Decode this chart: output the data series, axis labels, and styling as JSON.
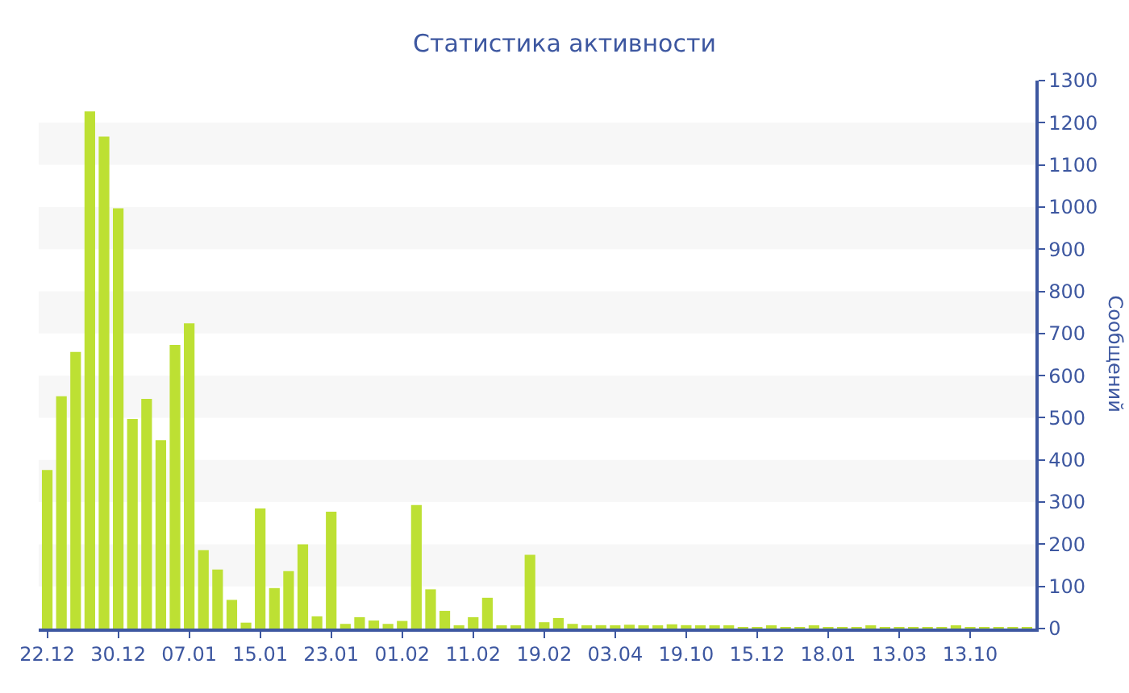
{
  "chart_data": {
    "type": "bar",
    "title": "Статистика активности",
    "ylabel": "Сообщений",
    "categories": [
      "22.12",
      null,
      null,
      null,
      null,
      "30.12",
      null,
      null,
      null,
      null,
      "07.01",
      null,
      null,
      null,
      null,
      "15.01",
      null,
      null,
      null,
      null,
      "23.01",
      null,
      null,
      null,
      null,
      "01.02",
      null,
      null,
      null,
      null,
      "11.02",
      null,
      null,
      null,
      null,
      "19.02",
      null,
      null,
      null,
      null,
      "03.04",
      null,
      null,
      null,
      null,
      "19.10",
      null,
      null,
      null,
      null,
      "15.12",
      null,
      null,
      null,
      null,
      "18.01",
      null,
      null,
      null,
      null,
      "13.03",
      null,
      null,
      null,
      null,
      "13.10",
      null,
      null,
      null,
      null
    ],
    "values": [
      376,
      551,
      656,
      1227,
      1167,
      997,
      497,
      545,
      447,
      673,
      724,
      186,
      140,
      68,
      14,
      285,
      96,
      136,
      200,
      29,
      277,
      11,
      27,
      19,
      11,
      18,
      293,
      93,
      42,
      6,
      27,
      73,
      6,
      5,
      175,
      15,
      25,
      11,
      4,
      8,
      5,
      9,
      4,
      4,
      10,
      8,
      5,
      5,
      5,
      3,
      3,
      4,
      3,
      3,
      5,
      3,
      3,
      3,
      4,
      3,
      3,
      3,
      3,
      3,
      4,
      3,
      3,
      3,
      3,
      3
    ],
    "color": "#bde033",
    "ylim": [
      0,
      1300
    ],
    "yticks": [
      0,
      100,
      200,
      300,
      400,
      500,
      600,
      700,
      800,
      900,
      1000,
      1100,
      1200,
      1300
    ],
    "bands": [
      {
        "axis": "y",
        "from": 100,
        "to": 200,
        "color": "#f7f7f7"
      },
      {
        "axis": "y",
        "from": 300,
        "to": 400,
        "color": "#f7f7f7"
      },
      {
        "axis": "y",
        "from": 500,
        "to": 600,
        "color": "#f7f7f7"
      },
      {
        "axis": "y",
        "from": 700,
        "to": 800,
        "color": "#f7f7f7"
      },
      {
        "axis": "y",
        "from": 900,
        "to": 1000,
        "color": "#f7f7f7"
      },
      {
        "axis": "y",
        "from": 1100,
        "to": 1200,
        "color": "#f7f7f7"
      }
    ],
    "grid": false
  }
}
